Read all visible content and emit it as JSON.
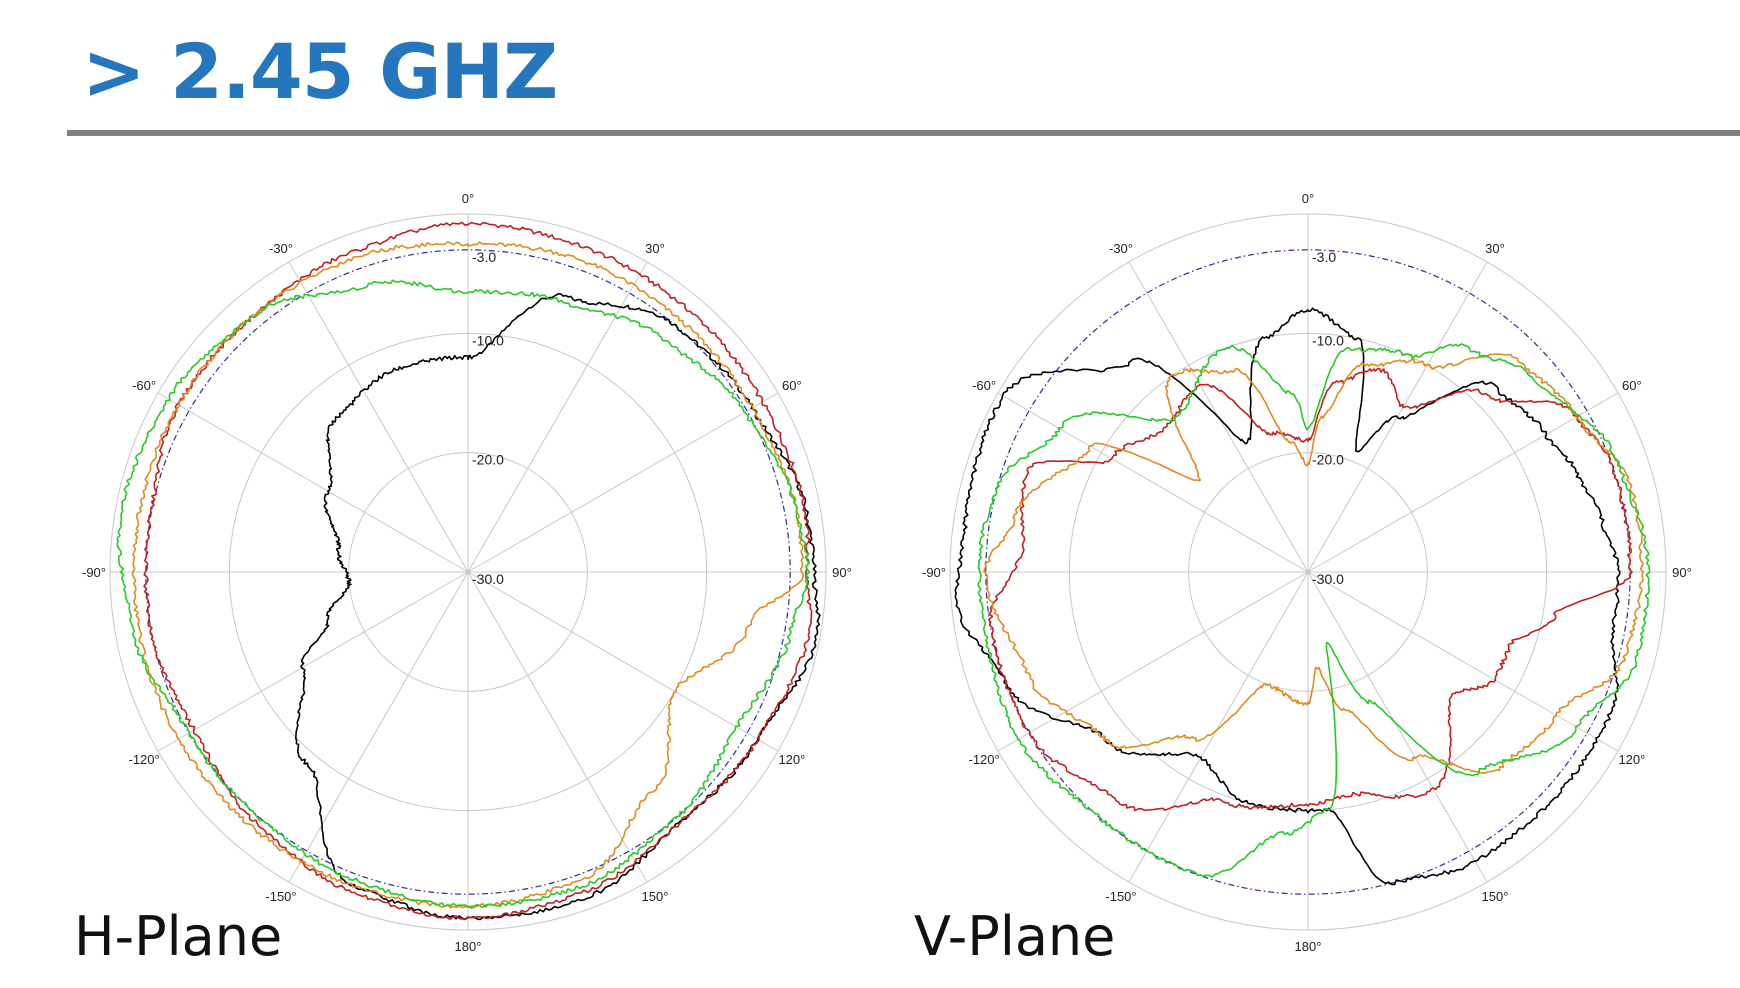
{
  "slide": {
    "title": "> 2.45 GHZ",
    "title_color": "#2576BC",
    "rule_color": "#808080"
  },
  "chart_data": [
    {
      "type": "polar-line",
      "caption": "H-Plane",
      "angle_ticks": [
        "0°",
        "30°",
        "60°",
        "90°",
        "120°",
        "150°",
        "180°",
        "-150°",
        "-120°",
        "-90°",
        "-60°",
        "-30°"
      ],
      "radial_ticks": [
        "-3.0",
        "-10.0",
        "-20.0",
        "-30.0"
      ],
      "rlim": [
        -30,
        0
      ],
      "grid": true,
      "reference_circle": {
        "r": -3.0,
        "color": "#2B2BA0",
        "style": "dash-dot"
      },
      "series": [
        {
          "color": "#000000",
          "points": [
            [
              0,
              -12
            ],
            [
              20,
              -5.5
            ],
            [
              40,
              -3
            ],
            [
              60,
              -2.5
            ],
            [
              80,
              -1.2
            ],
            [
              90,
              -1
            ],
            [
              100,
              -0.3
            ],
            [
              120,
              -2
            ],
            [
              140,
              -2.5
            ],
            [
              160,
              -1
            ],
            [
              180,
              -1
            ],
            [
              200,
              -2
            ],
            [
              220,
              -9
            ],
            [
              240,
              -14
            ],
            [
              250,
              -17.5
            ],
            [
              265,
              -20
            ],
            [
              280,
              -19
            ],
            [
              300,
              -16.5
            ],
            [
              320,
              -13
            ],
            [
              340,
              -12
            ],
            [
              360,
              -12
            ]
          ]
        },
        {
          "color": "#C02020",
          "points": [
            [
              0,
              -0.8
            ],
            [
              20,
              -1.1
            ],
            [
              40,
              -1.3
            ],
            [
              60,
              -1.5
            ],
            [
              80,
              -1.3
            ],
            [
              90,
              -1.6
            ],
            [
              100,
              -1
            ],
            [
              120,
              -2
            ],
            [
              140,
              -2.5
            ],
            [
              160,
              -1.5
            ],
            [
              180,
              -1
            ],
            [
              200,
              -1.5
            ],
            [
              220,
              -2.5
            ],
            [
              240,
              -3.5
            ],
            [
              260,
              -3
            ],
            [
              280,
              -3
            ],
            [
              300,
              -2
            ],
            [
              320,
              -2
            ],
            [
              340,
              -1.5
            ],
            [
              360,
              -0.8
            ]
          ]
        },
        {
          "color": "#E08A20",
          "points": [
            [
              0,
              -2.5
            ],
            [
              20,
              -2.2
            ],
            [
              40,
              -2.4
            ],
            [
              60,
              -2.5
            ],
            [
              80,
              -2
            ],
            [
              90,
              -2
            ],
            [
              100,
              -6
            ],
            [
              120,
              -10
            ],
            [
              140,
              -6
            ],
            [
              160,
              -2.5
            ],
            [
              180,
              -2
            ],
            [
              200,
              -2
            ],
            [
              220,
              -2
            ],
            [
              240,
              -2
            ],
            [
              260,
              -2
            ],
            [
              280,
              -2
            ],
            [
              300,
              -2
            ],
            [
              320,
              -2
            ],
            [
              340,
              -2
            ],
            [
              360,
              -2.5
            ]
          ]
        },
        {
          "color": "#28C828",
          "points": [
            [
              0,
              -6.5
            ],
            [
              20,
              -6
            ],
            [
              40,
              -4.5
            ],
            [
              60,
              -3.2
            ],
            [
              80,
              -2
            ],
            [
              90,
              -1.5
            ],
            [
              100,
              -2.5
            ],
            [
              120,
              -4
            ],
            [
              140,
              -3
            ],
            [
              160,
              -2
            ],
            [
              180,
              -2
            ],
            [
              200,
              -2.5
            ],
            [
              220,
              -3
            ],
            [
              240,
              -3
            ],
            [
              260,
              -1.5
            ],
            [
              280,
              -0.5
            ],
            [
              300,
              -1
            ],
            [
              320,
              -2
            ],
            [
              340,
              -4.5
            ],
            [
              360,
              -6.5
            ]
          ]
        }
      ]
    },
    {
      "type": "polar-line",
      "caption": "V-Plane",
      "angle_ticks": [
        "0°",
        "30°",
        "60°",
        "90°",
        "120°",
        "150°",
        "180°",
        "-150°",
        "-120°",
        "-90°",
        "-60°",
        "-30°"
      ],
      "radial_ticks": [
        "-3.0",
        "-10.0",
        "-20.0",
        "-30.0"
      ],
      "rlim": [
        -30,
        0
      ],
      "grid": true,
      "reference_circle": {
        "r": -3.0,
        "color": "#2B2BA0",
        "style": "dash-dot"
      },
      "series": [
        {
          "color": "#000000",
          "points": [
            [
              0,
              -8
            ],
            [
              12,
              -10
            ],
            [
              22,
              -19
            ],
            [
              30,
              -15
            ],
            [
              45,
              -8
            ],
            [
              60,
              -7
            ],
            [
              70,
              -6
            ],
            [
              80,
              -5
            ],
            [
              90,
              -4
            ],
            [
              100,
              -4
            ],
            [
              115,
              -2
            ],
            [
              130,
              -2
            ],
            [
              150,
              -2
            ],
            [
              165,
              -3
            ],
            [
              175,
              -10
            ],
            [
              185,
              -10
            ],
            [
              195,
              -10
            ],
            [
              210,
              -12
            ],
            [
              230,
              -8
            ],
            [
              250,
              -3
            ],
            [
              265,
              -0.5
            ],
            [
              275,
              -1
            ],
            [
              300,
              -0.5
            ],
            [
              320,
              -7
            ],
            [
              335,
              -18
            ],
            [
              350,
              -10
            ],
            [
              360,
              -8
            ]
          ]
        },
        {
          "color": "#C02020",
          "points": [
            [
              0,
              -19
            ],
            [
              8,
              -14
            ],
            [
              20,
              -12
            ],
            [
              30,
              -14
            ],
            [
              45,
              -9
            ],
            [
              60,
              -4
            ],
            [
              70,
              -3
            ],
            [
              80,
              -3
            ],
            [
              90,
              -3
            ],
            [
              100,
              -9
            ],
            [
              110,
              -12
            ],
            [
              120,
              -12
            ],
            [
              130,
              -14
            ],
            [
              150,
              -9
            ],
            [
              170,
              -11
            ],
            [
              180,
              -10.5
            ],
            [
              200,
              -9.5
            ],
            [
              220,
              -5
            ],
            [
              240,
              -3
            ],
            [
              260,
              -3
            ],
            [
              275,
              -6
            ],
            [
              290,
              -5
            ],
            [
              300,
              -11
            ],
            [
              315,
              -13
            ],
            [
              330,
              -12
            ],
            [
              345,
              -18
            ],
            [
              360,
              -19
            ]
          ]
        },
        {
          "color": "#E08A20",
          "points": [
            [
              0,
              -21
            ],
            [
              5,
              -17
            ],
            [
              15,
              -12
            ],
            [
              30,
              -10
            ],
            [
              45,
              -5
            ],
            [
              60,
              -4
            ],
            [
              75,
              -2
            ],
            [
              90,
              -2
            ],
            [
              105,
              -2.5
            ],
            [
              120,
              -6
            ],
            [
              135,
              -7
            ],
            [
              150,
              -12
            ],
            [
              165,
              -18
            ],
            [
              175,
              -22
            ],
            [
              180,
              -19
            ],
            [
              200,
              -20
            ],
            [
              215,
              -13
            ],
            [
              230,
              -8
            ],
            [
              250,
              -5
            ],
            [
              270,
              -3
            ],
            [
              280,
              -5
            ],
            [
              300,
              -9
            ],
            [
              310,
              -18
            ],
            [
              325,
              -10
            ],
            [
              340,
              -12
            ],
            [
              352,
              -19
            ],
            [
              360,
              -21
            ]
          ]
        },
        {
          "color": "#28C828",
          "points": [
            [
              0,
              -18
            ],
            [
              10,
              -11
            ],
            [
              25,
              -10
            ],
            [
              35,
              -7
            ],
            [
              50,
              -5
            ],
            [
              70,
              -2.5
            ],
            [
              90,
              -1.5
            ],
            [
              105,
              -1.5
            ],
            [
              120,
              -4
            ],
            [
              140,
              -8
            ],
            [
              155,
              -18
            ],
            [
              165,
              -24
            ],
            [
              175,
              -10
            ],
            [
              185,
              -8
            ],
            [
              200,
              -3
            ],
            [
              220,
              -3
            ],
            [
              240,
              -2
            ],
            [
              260,
              -2.5
            ],
            [
              275,
              -2.5
            ],
            [
              285,
              -3
            ],
            [
              300,
              -6
            ],
            [
              320,
              -13
            ],
            [
              340,
              -10
            ],
            [
              355,
              -15
            ],
            [
              360,
              -18
            ]
          ]
        }
      ]
    }
  ]
}
